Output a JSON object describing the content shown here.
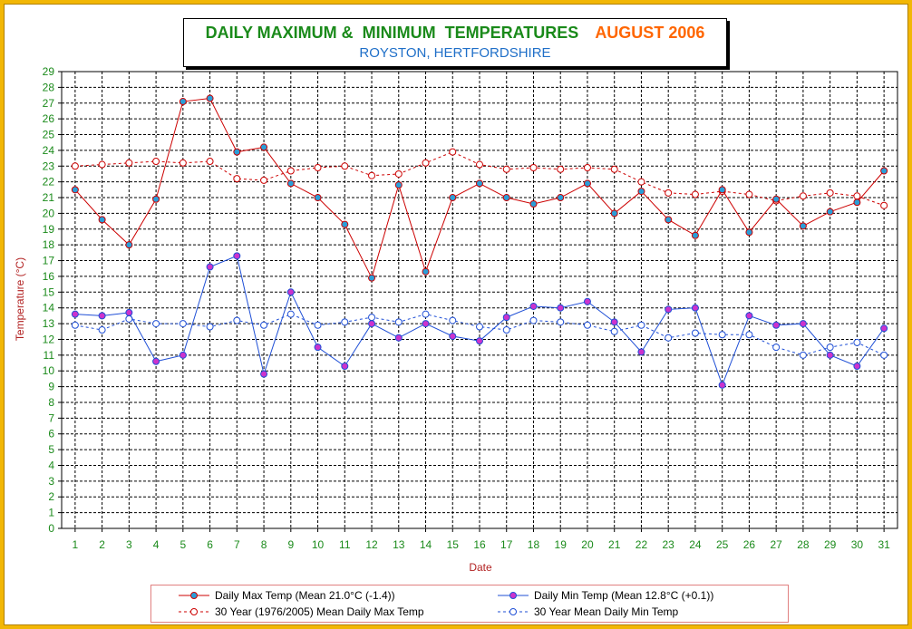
{
  "title": "DAILY MAXIMUM &  MINIMUM  TEMPERATURES",
  "month": "AUGUST 2006",
  "subtitle": "ROYSTON, HERTFORDSHIRE",
  "colors": {
    "frame": "#f2b705",
    "max": "#cc0000",
    "min": "#1f4fd6",
    "max_marker": "#2a9ed8",
    "min_marker": "#cc33cc",
    "grid": "#000000",
    "ticks": "#1a8a1a",
    "axis_title": "#b22222"
  },
  "chart_data": {
    "type": "line",
    "xlabel": "Date",
    "ylabel": "Temperature (°C)",
    "ylim": [
      0,
      29
    ],
    "xlim": [
      0.5,
      31.5
    ],
    "grid": true,
    "legend_position": "bottom",
    "x": [
      1,
      2,
      3,
      4,
      5,
      6,
      7,
      8,
      9,
      10,
      11,
      12,
      13,
      14,
      15,
      16,
      17,
      18,
      19,
      20,
      21,
      22,
      23,
      24,
      25,
      26,
      27,
      28,
      29,
      30,
      31
    ],
    "series": [
      {
        "name": "Daily Max Temp (Mean 21.0°C (-1.4))",
        "key": "max",
        "style": "solid",
        "values": [
          21.5,
          19.6,
          18.0,
          20.9,
          27.1,
          27.3,
          23.9,
          24.2,
          21.9,
          21.0,
          19.3,
          15.9,
          21.8,
          16.3,
          21.0,
          21.9,
          21.0,
          20.6,
          21.0,
          21.9,
          20.0,
          21.4,
          19.6,
          18.6,
          21.5,
          18.8,
          20.9,
          19.2,
          20.1,
          20.7,
          22.7
        ]
      },
      {
        "name": "Daily Min Temp (Mean 12.8°C (+0.1))",
        "key": "min",
        "style": "solid",
        "values": [
          13.6,
          13.5,
          13.7,
          10.6,
          11.0,
          16.6,
          17.3,
          9.8,
          15.0,
          11.5,
          10.3,
          13.0,
          12.1,
          13.0,
          12.2,
          11.9,
          13.4,
          14.1,
          14.0,
          14.4,
          13.1,
          11.2,
          13.9,
          14.0,
          9.1,
          13.5,
          12.9,
          13.0,
          11.0,
          10.3,
          12.7
        ]
      },
      {
        "name": "30 Year (1976/2005) Mean Daily Max Temp",
        "key": "max30",
        "style": "dashed",
        "values": [
          23.0,
          23.1,
          23.2,
          23.3,
          23.2,
          23.3,
          22.2,
          22.1,
          22.7,
          22.9,
          23.0,
          22.4,
          22.5,
          23.2,
          23.9,
          23.1,
          22.8,
          22.9,
          22.8,
          22.9,
          22.8,
          22.0,
          21.3,
          21.2,
          21.4,
          21.2,
          20.8,
          21.1,
          21.3,
          21.1,
          20.5
        ]
      },
      {
        "name": "30 Year Mean Daily Min Temp",
        "key": "min30",
        "style": "dashed",
        "values": [
          12.9,
          12.6,
          13.3,
          13.0,
          13.0,
          12.8,
          13.2,
          12.9,
          13.6,
          12.9,
          13.1,
          13.4,
          13.1,
          13.6,
          13.2,
          12.8,
          12.6,
          13.2,
          13.1,
          12.9,
          12.5,
          12.9,
          12.1,
          12.4,
          12.3,
          12.3,
          11.5,
          11.0,
          11.5,
          11.8,
          11.0
        ]
      }
    ]
  }
}
